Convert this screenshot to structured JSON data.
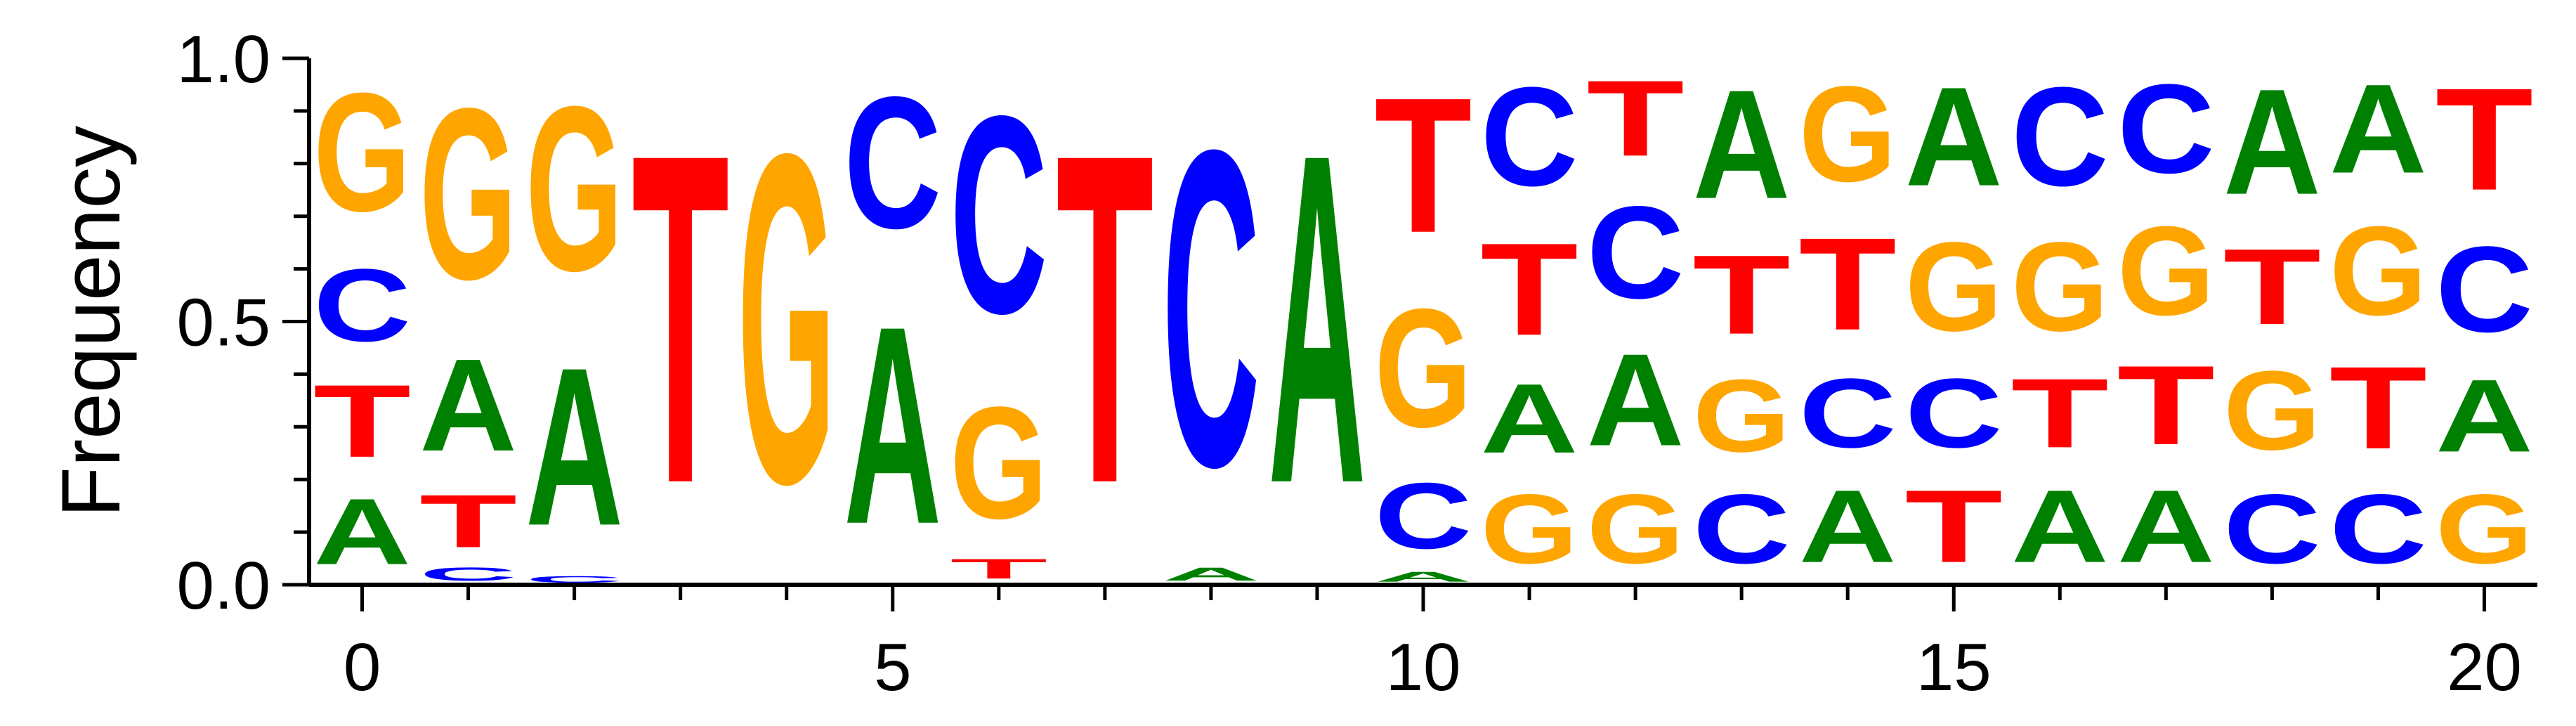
{
  "chart_data": {
    "type": "sequence-logo",
    "ylabel": "Frequency",
    "xlabel": "",
    "ylim": [
      0,
      1
    ],
    "xlim": [
      -0.5,
      20.5
    ],
    "y_ticks": [
      0.0,
      0.5,
      1.0
    ],
    "y_tick_labels": [
      "0.0",
      "0.5",
      "1.0"
    ],
    "x_ticks": [
      0,
      5,
      10,
      15,
      20
    ],
    "x_tick_labels": [
      "0",
      "5",
      "10",
      "15",
      "20"
    ],
    "colors": {
      "A": "#008000",
      "C": "#0000ff",
      "G": "#ffa500",
      "T": "#ff0000"
    },
    "positions": [
      {
        "pos": 0,
        "stack": [
          [
            "A",
            0.2
          ],
          [
            "T",
            0.22
          ],
          [
            "C",
            0.22
          ],
          [
            "G",
            0.36
          ]
        ]
      },
      {
        "pos": 1,
        "stack": [
          [
            "C",
            0.04
          ],
          [
            "T",
            0.16
          ],
          [
            "A",
            0.28
          ],
          [
            "G",
            0.52
          ]
        ]
      },
      {
        "pos": 2,
        "stack": [
          [
            "C",
            0.02
          ],
          [
            "A",
            0.48
          ],
          [
            "G",
            0.5
          ]
        ]
      },
      {
        "pos": 3,
        "stack": [
          [
            "T",
            1.0
          ]
        ]
      },
      {
        "pos": 4,
        "stack": [
          [
            "G",
            1.0
          ]
        ]
      },
      {
        "pos": 5,
        "stack": [
          [
            "A",
            0.6
          ],
          [
            "C",
            0.4
          ]
        ]
      },
      {
        "pos": 6,
        "stack": [
          [
            "T",
            0.06
          ],
          [
            "G",
            0.34
          ],
          [
            "C",
            0.6
          ]
        ]
      },
      {
        "pos": 7,
        "stack": [
          [
            "T",
            1.0
          ]
        ]
      },
      {
        "pos": 8,
        "stack": [
          [
            "A",
            0.04
          ],
          [
            "C",
            0.96
          ]
        ]
      },
      {
        "pos": 9,
        "stack": [
          [
            "A",
            1.0
          ]
        ]
      },
      {
        "pos": 10,
        "stack": [
          [
            "A",
            0.03
          ],
          [
            "C",
            0.2
          ],
          [
            "G",
            0.36
          ],
          [
            "T",
            0.41
          ]
        ]
      },
      {
        "pos": 11,
        "stack": [
          [
            "G",
            0.21
          ],
          [
            "A",
            0.21
          ],
          [
            "T",
            0.28
          ],
          [
            "C",
            0.3
          ]
        ]
      },
      {
        "pos": 12,
        "stack": [
          [
            "G",
            0.21
          ],
          [
            "A",
            0.28
          ],
          [
            "C",
            0.28
          ],
          [
            "T",
            0.23
          ]
        ]
      },
      {
        "pos": 13,
        "stack": [
          [
            "C",
            0.21
          ],
          [
            "G",
            0.22
          ],
          [
            "T",
            0.24
          ],
          [
            "A",
            0.33
          ]
        ]
      },
      {
        "pos": 14,
        "stack": [
          [
            "A",
            0.22
          ],
          [
            "C",
            0.21
          ],
          [
            "T",
            0.28
          ],
          [
            "G",
            0.29
          ]
        ]
      },
      {
        "pos": 15,
        "stack": [
          [
            "T",
            0.22
          ],
          [
            "C",
            0.21
          ],
          [
            "G",
            0.27
          ],
          [
            "A",
            0.3
          ]
        ]
      },
      {
        "pos": 16,
        "stack": [
          [
            "A",
            0.22
          ],
          [
            "T",
            0.21
          ],
          [
            "G",
            0.27
          ],
          [
            "C",
            0.3
          ]
        ]
      },
      {
        "pos": 17,
        "stack": [
          [
            "A",
            0.22
          ],
          [
            "T",
            0.24
          ],
          [
            "G",
            0.27
          ],
          [
            "C",
            0.27
          ]
        ]
      },
      {
        "pos": 18,
        "stack": [
          [
            "C",
            0.21
          ],
          [
            "G",
            0.24
          ],
          [
            "T",
            0.23
          ],
          [
            "A",
            0.32
          ]
        ]
      },
      {
        "pos": 19,
        "stack": [
          [
            "C",
            0.21
          ],
          [
            "T",
            0.25
          ],
          [
            "G",
            0.27
          ],
          [
            "A",
            0.27
          ]
        ]
      },
      {
        "pos": 20,
        "stack": [
          [
            "G",
            0.21
          ],
          [
            "A",
            0.22
          ],
          [
            "C",
            0.26
          ],
          [
            "T",
            0.31
          ]
        ]
      }
    ]
  }
}
